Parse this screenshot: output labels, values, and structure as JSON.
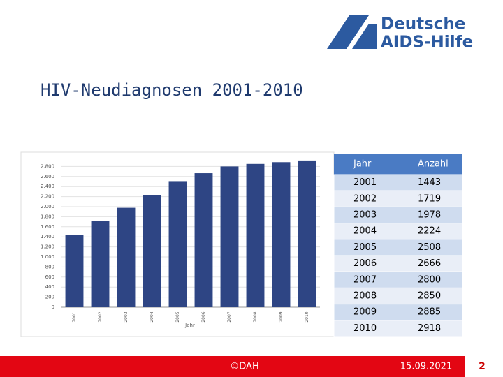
{
  "logo": {
    "line1": "Deutsche",
    "line2": "AIDS-Hilfe"
  },
  "header": {
    "title": "HIV-Neudiagnosen 2001-2010"
  },
  "chart_data": {
    "type": "bar",
    "x_label": "Jahr",
    "categories": [
      "2001",
      "2002",
      "2003",
      "2004",
      "2005",
      "2006",
      "2007",
      "2008",
      "2009",
      "2010"
    ],
    "values": [
      1443,
      1719,
      1978,
      2224,
      2508,
      2666,
      2800,
      2850,
      2885,
      2918
    ],
    "color": "#2e4584",
    "ylim": [
      0,
      3000
    ],
    "yticks": [
      0,
      200,
      400,
      600,
      800,
      {
        "value": 1000,
        "label": "1.000"
      },
      {
        "value": 1200,
        "label": "1.200"
      },
      {
        "value": 1400,
        "label": "1.400"
      },
      {
        "value": 1600,
        "label": "1.600"
      },
      {
        "value": 1800,
        "label": "1.800"
      },
      {
        "value": 2000,
        "label": "2.000"
      },
      {
        "value": 2200,
        "label": "2.200"
      },
      {
        "value": 2400,
        "label": "2.400"
      },
      {
        "value": 2600,
        "label": "2.600"
      },
      {
        "value": 2800,
        "label": "2.800"
      }
    ],
    "grid": true
  },
  "table": {
    "header": [
      "Jahr",
      "Anzahl"
    ],
    "rows": [
      [
        "2001",
        "1443"
      ],
      [
        "2002",
        "1719"
      ],
      [
        "2003",
        "1978"
      ],
      [
        "2004",
        "2224"
      ],
      [
        "2005",
        "2508"
      ],
      [
        "2006",
        "2666"
      ],
      [
        "2007",
        "2800"
      ],
      [
        "2008",
        "2850"
      ],
      [
        "2009",
        "2885"
      ],
      [
        "2010",
        "2918"
      ]
    ]
  },
  "footer": {
    "copyright": "©DAH",
    "date": "15.09.2021",
    "page": "2"
  }
}
